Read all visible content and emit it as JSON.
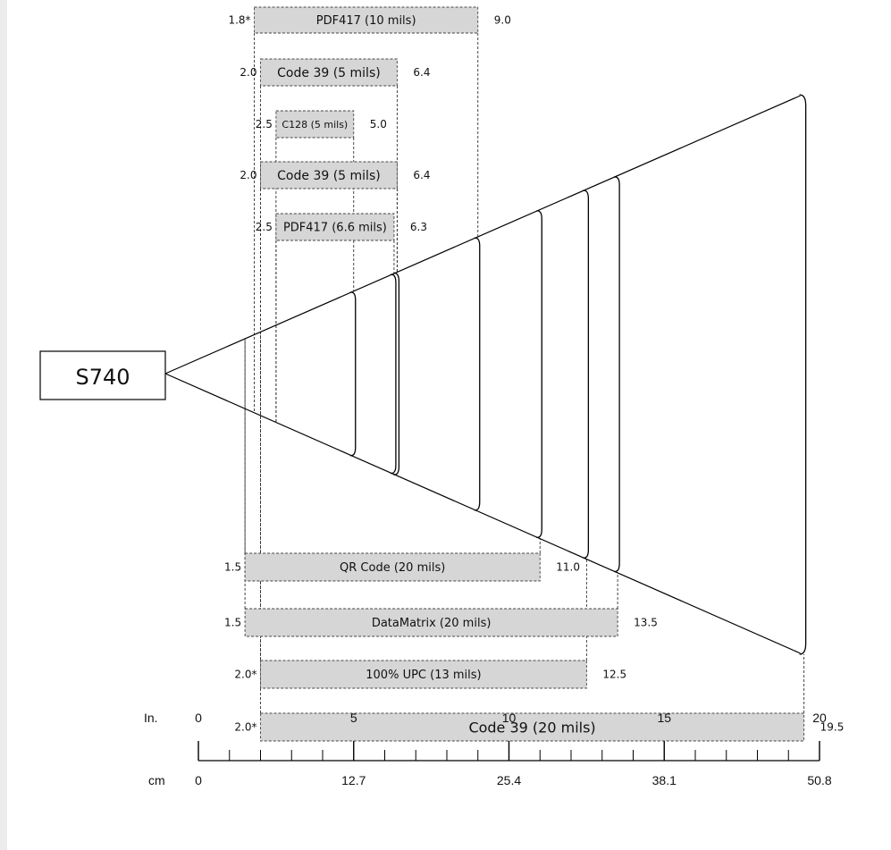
{
  "scanner_label": "S740",
  "axis": {
    "inch_label": "In.",
    "cm_label": "cm",
    "inch_ticks": [
      "0",
      "5",
      "10",
      "15",
      "20"
    ],
    "cm_ticks": [
      "0",
      "12.7",
      "25.4",
      "38.1",
      "50.8"
    ]
  },
  "bars": [
    {
      "label": "PDF417 (10 mils)",
      "min": 1.8,
      "max": 9.0,
      "min_text": "1.8*",
      "max_text": "9.0"
    },
    {
      "label": "Code 39 (5 mils)",
      "min": 2.0,
      "max": 6.4,
      "min_text": "2.0",
      "max_text": "6.4"
    },
    {
      "label": "C128 (5 mils)",
      "min": 2.5,
      "max": 5.0,
      "min_text": "2.5",
      "max_text": "5.0"
    },
    {
      "label": "Code 39 (5 mils)",
      "min": 2.0,
      "max": 6.4,
      "min_text": "2.0",
      "max_text": "6.4"
    },
    {
      "label": "PDF417 (6.6 mils)",
      "min": 2.5,
      "max": 6.3,
      "min_text": "2.5",
      "max_text": "6.3"
    },
    {
      "label": "QR Code (20 mils)",
      "min": 1.5,
      "max": 11.0,
      "min_text": "1.5",
      "max_text": "11.0"
    },
    {
      "label": "DataMatrix (20 mils)",
      "min": 1.5,
      "max": 13.5,
      "min_text": "1.5",
      "max_text": "13.5"
    },
    {
      "label": "100% UPC (13 mils)",
      "min": 2.0,
      "max": 12.5,
      "min_text": "2.0*",
      "max_text": "12.5"
    },
    {
      "label": "Code 39 (20 mils)",
      "min": 2.0,
      "max": 19.5,
      "min_text": "2.0*",
      "max_text": "19.5"
    }
  ],
  "arcs_at_inches": [
    5.0,
    6.3,
    6.4,
    9.0,
    11.0,
    12.5,
    13.5
  ],
  "cone_end_inches": 19.5
}
